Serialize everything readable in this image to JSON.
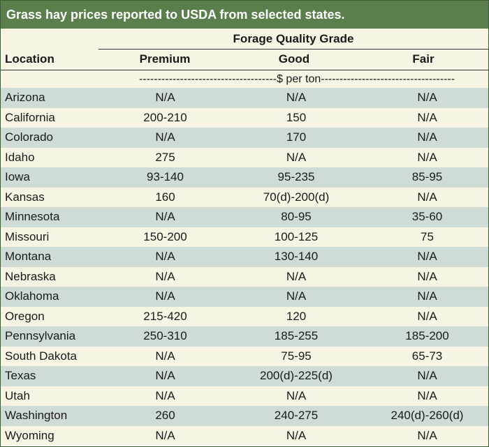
{
  "title": "Grass hay prices reported to USDA from selected states.",
  "header": {
    "group_title": "Forage Quality Grade",
    "location_label": "Location",
    "columns": [
      "Premium",
      "Good",
      "Fair"
    ]
  },
  "units_text": "-------------------------------------$ per ton------------------------------------",
  "rows": [
    {
      "location": "Arizona",
      "premium": "N/A",
      "good": "N/A",
      "fair": "N/A"
    },
    {
      "location": "California",
      "premium": "200-210",
      "good": "150",
      "fair": "N/A"
    },
    {
      "location": "Colorado",
      "premium": "N/A",
      "good": "170",
      "fair": "N/A"
    },
    {
      "location": "Idaho",
      "premium": "275",
      "good": "N/A",
      "fair": "N/A"
    },
    {
      "location": "Iowa",
      "premium": "93-140",
      "good": "95-235",
      "fair": "85-95"
    },
    {
      "location": "Kansas",
      "premium": "160",
      "good": "70(d)-200(d)",
      "fair": "N/A"
    },
    {
      "location": "Minnesota",
      "premium": "N/A",
      "good": "80-95",
      "fair": "35-60"
    },
    {
      "location": "Missouri",
      "premium": "150-200",
      "good": "100-125",
      "fair": "75"
    },
    {
      "location": "Montana",
      "premium": "N/A",
      "good": "130-140",
      "fair": "N/A"
    },
    {
      "location": "Nebraska",
      "premium": "N/A",
      "good": "N/A",
      "fair": "N/A"
    },
    {
      "location": "Oklahoma",
      "premium": "N/A",
      "good": "N/A",
      "fair": "N/A"
    },
    {
      "location": "Oregon",
      "premium": "215-420",
      "good": "120",
      "fair": "N/A"
    },
    {
      "location": "Pennsylvania",
      "premium": "250-310",
      "good": "185-255",
      "fair": "185-200"
    },
    {
      "location": "South Dakota",
      "premium": "N/A",
      "good": "75-95",
      "fair": "65-73"
    },
    {
      "location": "Texas",
      "premium": "N/A",
      "good": "200(d)-225(d)",
      "fair": "N/A"
    },
    {
      "location": "Utah",
      "premium": "N/A",
      "good": "N/A",
      "fair": "N/A"
    },
    {
      "location": "Washington",
      "premium": "260",
      "good": "240-275",
      "fair": "240(d)-260(d)"
    },
    {
      "location": "Wyoming",
      "premium": "N/A",
      "good": "N/A",
      "fair": "N/A"
    }
  ],
  "colors": {
    "title_bg": "#5b7f4c",
    "row_shaded": "#cfdcd5",
    "row_light": "#f7f4e3",
    "border": "#3e5a34"
  }
}
